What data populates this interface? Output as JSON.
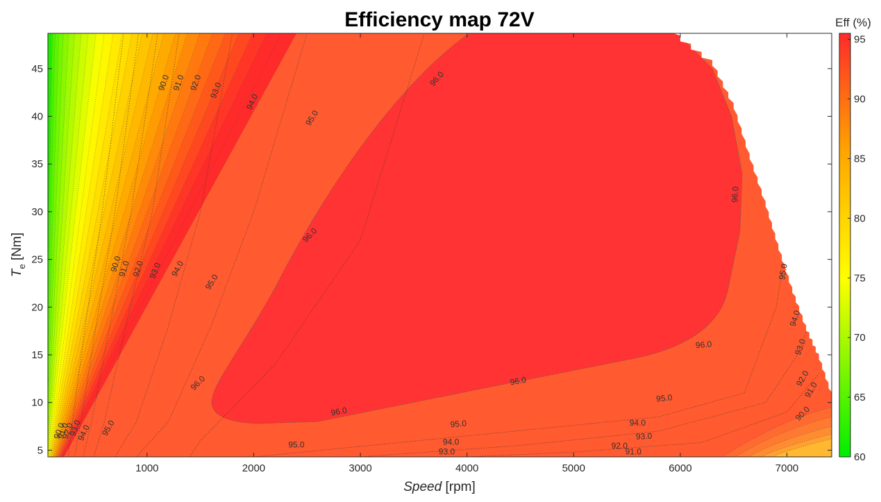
{
  "chart_data": {
    "type": "contour",
    "title": "Efficiency map 72V",
    "xlabel": {
      "italic": "Speed",
      "rest": " [rpm]"
    },
    "ylabel": {
      "main": "T",
      "sub": "e",
      "rest": " [Nm]"
    },
    "xlim": [
      70,
      7420
    ],
    "ylim": [
      4.3,
      48.7
    ],
    "xticks": [
      1000,
      2000,
      3000,
      4000,
      5000,
      6000,
      7000
    ],
    "yticks": [
      5,
      10,
      15,
      20,
      25,
      30,
      35,
      40,
      45
    ],
    "grid": false,
    "colorbar": {
      "title": "Eff (%)",
      "range": [
        60,
        95.5
      ],
      "ticks": [
        60,
        65,
        70,
        75,
        80,
        85,
        90,
        95
      ],
      "colors": [
        "#00ee00",
        "#ffff00",
        "#ffa500",
        "#ff2a2a"
      ]
    },
    "peak_efficiency_region": {
      "level": 96.0,
      "label": "96.0"
    },
    "max_torque_envelope": [
      [
        5900,
        48.7
      ],
      [
        6300,
        45.3
      ],
      [
        6500,
        40.8
      ],
      [
        6650,
        35.5
      ],
      [
        6800,
        30.5
      ],
      [
        6920,
        26.0
      ],
      [
        7050,
        21.5
      ],
      [
        7180,
        17.5
      ],
      [
        7300,
        14.5
      ],
      [
        7420,
        10.5
      ]
    ],
    "contour_labels": [
      {
        "text": "90.0",
        "x": 1160,
        "y": 43.5,
        "angle": -70
      },
      {
        "text": "91.0",
        "x": 1300,
        "y": 43.5,
        "angle": -70
      },
      {
        "text": "92.0",
        "x": 1460,
        "y": 43.5,
        "angle": -70
      },
      {
        "text": "93.0",
        "x": 1650,
        "y": 42.7,
        "angle": -68
      },
      {
        "text": "94.0",
        "x": 1990,
        "y": 41.5,
        "angle": -65
      },
      {
        "text": "95.0",
        "x": 2550,
        "y": 39.8,
        "angle": -58
      },
      {
        "text": "96.0",
        "x": 3720,
        "y": 43.9,
        "angle": -48
      },
      {
        "text": "96.0",
        "x": 6520,
        "y": 31.8,
        "angle": -87
      },
      {
        "text": "96.0",
        "x": 2530,
        "y": 27.5,
        "angle": -45
      },
      {
        "text": "90.0",
        "x": 710,
        "y": 24.5,
        "angle": -72
      },
      {
        "text": "91.0",
        "x": 790,
        "y": 24.0,
        "angle": -72
      },
      {
        "text": "92.0",
        "x": 920,
        "y": 24.0,
        "angle": -72
      },
      {
        "text": "93.0",
        "x": 1080,
        "y": 23.8,
        "angle": -68
      },
      {
        "text": "94.0",
        "x": 1290,
        "y": 24.0,
        "angle": -62
      },
      {
        "text": "95.0",
        "x": 1610,
        "y": 22.6,
        "angle": -58
      },
      {
        "text": "95.0",
        "x": 6970,
        "y": 23.7,
        "angle": -80
      },
      {
        "text": "94.0",
        "x": 7080,
        "y": 18.8,
        "angle": -72
      },
      {
        "text": "93.0",
        "x": 7130,
        "y": 15.8,
        "angle": -70
      },
      {
        "text": "92.0",
        "x": 7150,
        "y": 12.5,
        "angle": -60
      },
      {
        "text": "91.0",
        "x": 7230,
        "y": 11.3,
        "angle": -60
      },
      {
        "text": "90.0",
        "x": 7150,
        "y": 8.8,
        "angle": -45
      },
      {
        "text": "96.0",
        "x": 6220,
        "y": 16.0,
        "angle": -5
      },
      {
        "text": "96.0",
        "x": 4480,
        "y": 12.2,
        "angle": -10
      },
      {
        "text": "96.0",
        "x": 2800,
        "y": 9.0,
        "angle": -10
      },
      {
        "text": "96.0",
        "x": 1480,
        "y": 12.0,
        "angle": -45
      },
      {
        "text": "95.0",
        "x": 5850,
        "y": 10.4,
        "angle": -6
      },
      {
        "text": "95.0",
        "x": 3920,
        "y": 7.7,
        "angle": -5
      },
      {
        "text": "95.0",
        "x": 2400,
        "y": 5.5,
        "angle": 0
      },
      {
        "text": "95.0",
        "x": 640,
        "y": 7.3,
        "angle": -60
      },
      {
        "text": "94.0",
        "x": 5600,
        "y": 7.8,
        "angle": 0
      },
      {
        "text": "94.0",
        "x": 3850,
        "y": 5.8,
        "angle": 0
      },
      {
        "text": "94.0",
        "x": 410,
        "y": 6.8,
        "angle": -65
      },
      {
        "text": "93.0",
        "x": 5660,
        "y": 6.4,
        "angle": -3
      },
      {
        "text": "93.0",
        "x": 3810,
        "y": 4.8,
        "angle": 0
      },
      {
        "text": "93.0",
        "x": 330,
        "y": 7.3,
        "angle": -70
      },
      {
        "text": "92.0",
        "x": 5430,
        "y": 5.4,
        "angle": 0
      },
      {
        "text": "92.0",
        "x": 260,
        "y": 7.0,
        "angle": -70
      },
      {
        "text": "91.0",
        "x": 5560,
        "y": 4.8,
        "angle": 0
      },
      {
        "text": "91.0",
        "x": 215,
        "y": 7.0,
        "angle": -70
      },
      {
        "text": "90.0",
        "x": 180,
        "y": 7.0,
        "angle": -70
      }
    ]
  }
}
